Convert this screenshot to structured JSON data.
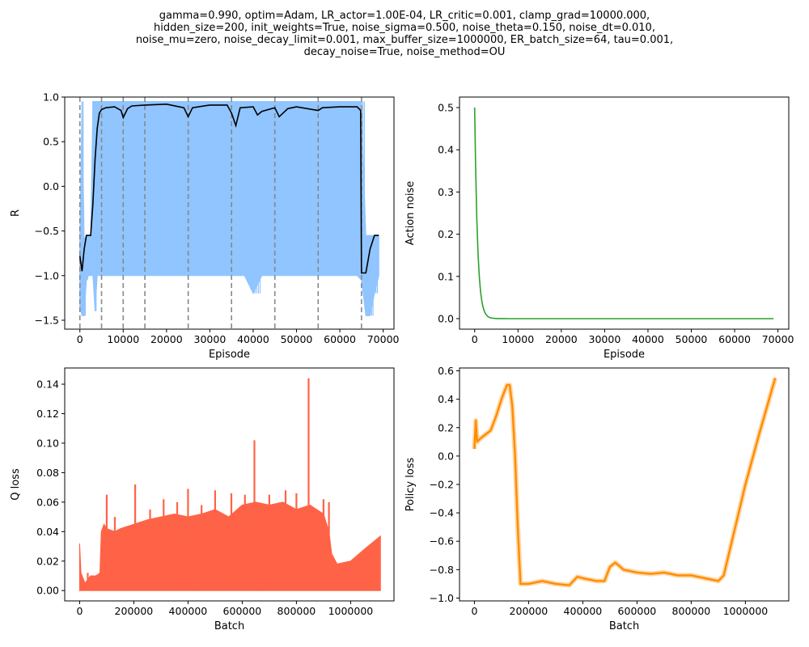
{
  "figure": {
    "title_lines": [
      "gamma=0.990, optim=Adam, LR_actor=1.00E-04, LR_critic=0.001, clamp_grad=10000.000,",
      "hidden_size=200, init_weights=True, noise_sigma=0.500, noise_theta=0.150, noise_dt=0.010,",
      "noise_mu=zero, noise_decay_limit=0.001, max_buffer_size=1000000, ER_batch_size=64, tau=0.001,",
      "decay_noise=True, noise_method=OU"
    ]
  },
  "chart_data": [
    {
      "id": "reward",
      "type": "line",
      "xlabel": "Episode",
      "ylabel": "R",
      "xlim": [
        -3500,
        72500
      ],
      "ylim": [
        -1.6,
        1.0
      ],
      "xticks": [
        0,
        10000,
        20000,
        30000,
        40000,
        50000,
        60000,
        70000
      ],
      "yticks": [
        -1.5,
        -1.0,
        -0.5,
        0.0,
        0.5,
        1.0
      ],
      "ytick_labels": [
        "−1.5",
        "−1.0",
        "−0.5",
        "0.0",
        "0.5",
        "1.0"
      ],
      "vlines": [
        0,
        5000,
        10000,
        15000,
        25000,
        35000,
        45000,
        55000,
        65000
      ],
      "colors": {
        "raw": "#90c5ff",
        "smoothed": "#000000",
        "vlines": "#888888"
      },
      "series": [
        {
          "role": "raw",
          "x": [
            0,
            500,
            1000,
            1500,
            2000,
            2500,
            3000,
            3500,
            4000,
            4500,
            5000,
            6000,
            8000,
            10000,
            12000,
            15000,
            18000,
            20000,
            25000,
            28000,
            30000,
            35000,
            38000,
            40000,
            42000,
            45000,
            48000,
            50000,
            55000,
            58000,
            60000,
            62000,
            64000,
            65000,
            66000,
            67000,
            68000,
            69000
          ],
          "y_high": [
            -0.55,
            0.95,
            -0.6,
            -0.55,
            -0.55,
            -0.55,
            0.95,
            0.95,
            0.95,
            0.95,
            0.95,
            0.95,
            0.95,
            0.95,
            0.95,
            0.95,
            0.95,
            0.95,
            0.95,
            0.95,
            0.95,
            0.95,
            0.95,
            0.95,
            0.95,
            0.95,
            0.95,
            0.95,
            0.95,
            0.95,
            0.95,
            0.95,
            0.95,
            0.95,
            -0.55,
            -0.55,
            -0.55,
            -0.55
          ],
          "y_low": [
            -1.35,
            -1.45,
            -1.45,
            -1.05,
            -1.0,
            -1.0,
            -1.0,
            -1.4,
            -1.0,
            -1.0,
            -1.0,
            -1.0,
            -1.0,
            -1.0,
            -1.0,
            -1.0,
            -1.0,
            -1.0,
            -1.0,
            -1.0,
            -1.0,
            -1.0,
            -1.0,
            -1.2,
            -1.0,
            -1.0,
            -1.0,
            -1.0,
            -1.0,
            -1.0,
            -1.0,
            -1.0,
            -1.0,
            -1.05,
            -1.45,
            -1.45,
            -1.2,
            -1.0
          ]
        },
        {
          "role": "smoothed",
          "x": [
            0,
            500,
            1000,
            1500,
            2000,
            2500,
            3000,
            3500,
            4000,
            4500,
            5000,
            6000,
            8000,
            9500,
            10000,
            11000,
            12000,
            15000,
            20000,
            24000,
            25000,
            26000,
            30000,
            34000,
            35000,
            36000,
            37000,
            40000,
            41000,
            42000,
            45000,
            46000,
            48000,
            50000,
            55000,
            56000,
            60000,
            64000,
            64800,
            65000,
            66000,
            67000,
            68000,
            69000
          ],
          "y": [
            -0.78,
            -0.95,
            -0.7,
            -0.55,
            -0.55,
            -0.55,
            -0.2,
            0.3,
            0.65,
            0.82,
            0.86,
            0.88,
            0.89,
            0.85,
            0.77,
            0.87,
            0.9,
            0.91,
            0.92,
            0.88,
            0.78,
            0.88,
            0.91,
            0.91,
            0.82,
            0.68,
            0.88,
            0.89,
            0.8,
            0.84,
            0.88,
            0.78,
            0.87,
            0.89,
            0.85,
            0.88,
            0.89,
            0.89,
            0.85,
            -0.97,
            -0.97,
            -0.7,
            -0.55,
            -0.55
          ]
        }
      ]
    },
    {
      "id": "noise",
      "type": "line",
      "xlabel": "Episode",
      "ylabel": "Action noise",
      "xlim": [
        -3500,
        72500
      ],
      "ylim": [
        -0.025,
        0.525
      ],
      "xticks": [
        0,
        10000,
        20000,
        30000,
        40000,
        50000,
        60000,
        70000
      ],
      "yticks": [
        0.0,
        0.1,
        0.2,
        0.3,
        0.4,
        0.5
      ],
      "ytick_labels": [
        "0.0",
        "0.1",
        "0.2",
        "0.3",
        "0.4",
        "0.5"
      ],
      "color": "#2ca02c",
      "decay": {
        "start": 0.5,
        "rate_per_episode": 0.0015,
        "end_x": 69000
      }
    },
    {
      "id": "qloss",
      "type": "area",
      "xlabel": "Batch",
      "ylabel": "Q loss",
      "xlim": [
        -55000,
        1160000
      ],
      "ylim": [
        -0.007,
        0.151
      ],
      "xticks": [
        0,
        200000,
        400000,
        600000,
        800000,
        1000000
      ],
      "yticks": [
        0.0,
        0.02,
        0.04,
        0.06,
        0.08,
        0.1,
        0.12,
        0.14
      ],
      "ytick_labels": [
        "0.00",
        "0.02",
        "0.04",
        "0.06",
        "0.08",
        "0.10",
        "0.12",
        "0.14"
      ],
      "color": "#ff6347",
      "envelope": {
        "x": [
          0,
          5000,
          20000,
          40000,
          60000,
          75000,
          80000,
          90000,
          100000,
          130000,
          150000,
          200000,
          250000,
          300000,
          350000,
          400000,
          450000,
          500000,
          550000,
          600000,
          650000,
          700000,
          750000,
          800000,
          850000,
          900000,
          920000,
          930000,
          950000,
          1000000,
          1050000,
          1110000
        ],
        "y": [
          0.032,
          0.012,
          0.005,
          0.01,
          0.01,
          0.012,
          0.04,
          0.045,
          0.042,
          0.04,
          0.042,
          0.045,
          0.048,
          0.05,
          0.052,
          0.05,
          0.052,
          0.055,
          0.05,
          0.058,
          0.06,
          0.058,
          0.06,
          0.055,
          0.058,
          0.052,
          0.04,
          0.025,
          0.018,
          0.02,
          0.028,
          0.037
        ]
      },
      "spikes": [
        {
          "x": 30000,
          "y": 0.012
        },
        {
          "x": 100000,
          "y": 0.065
        },
        {
          "x": 130000,
          "y": 0.05
        },
        {
          "x": 205000,
          "y": 0.072
        },
        {
          "x": 260000,
          "y": 0.055
        },
        {
          "x": 310000,
          "y": 0.062
        },
        {
          "x": 360000,
          "y": 0.06
        },
        {
          "x": 400000,
          "y": 0.069
        },
        {
          "x": 450000,
          "y": 0.058
        },
        {
          "x": 500000,
          "y": 0.068
        },
        {
          "x": 560000,
          "y": 0.066
        },
        {
          "x": 610000,
          "y": 0.065
        },
        {
          "x": 645000,
          "y": 0.102
        },
        {
          "x": 700000,
          "y": 0.065
        },
        {
          "x": 760000,
          "y": 0.068
        },
        {
          "x": 800000,
          "y": 0.066
        },
        {
          "x": 845000,
          "y": 0.144
        },
        {
          "x": 900000,
          "y": 0.062
        },
        {
          "x": 920000,
          "y": 0.06
        }
      ]
    },
    {
      "id": "policy",
      "type": "line",
      "xlabel": "Batch",
      "ylabel": "Policy loss",
      "xlim": [
        -55000,
        1160000
      ],
      "ylim": [
        -1.02,
        0.62
      ],
      "xticks": [
        0,
        200000,
        400000,
        600000,
        800000,
        1000000
      ],
      "yticks": [
        -1.0,
        -0.8,
        -0.6,
        -0.4,
        -0.2,
        0.0,
        0.2,
        0.4,
        0.6
      ],
      "ytick_labels": [
        "−1.0",
        "−0.8",
        "−0.6",
        "−0.4",
        "−0.2",
        "0.0",
        "0.2",
        "0.4",
        "0.6"
      ],
      "color": "#ff8c00",
      "x": [
        0,
        5000,
        10000,
        20000,
        40000,
        60000,
        80000,
        100000,
        120000,
        130000,
        140000,
        150000,
        160000,
        170000,
        200000,
        250000,
        300000,
        350000,
        380000,
        400000,
        450000,
        480000,
        500000,
        520000,
        550000,
        600000,
        650000,
        700000,
        750000,
        800000,
        850000,
        900000,
        920000,
        950000,
        1000000,
        1050000,
        1110000
      ],
      "y": [
        0.05,
        0.25,
        0.1,
        0.12,
        0.15,
        0.18,
        0.28,
        0.4,
        0.5,
        0.5,
        0.35,
        0.0,
        -0.5,
        -0.9,
        -0.9,
        -0.88,
        -0.9,
        -0.91,
        -0.85,
        -0.86,
        -0.88,
        -0.88,
        -0.78,
        -0.75,
        -0.8,
        -0.82,
        -0.83,
        -0.82,
        -0.84,
        -0.84,
        -0.86,
        -0.88,
        -0.84,
        -0.6,
        -0.2,
        0.15,
        0.55
      ]
    }
  ]
}
